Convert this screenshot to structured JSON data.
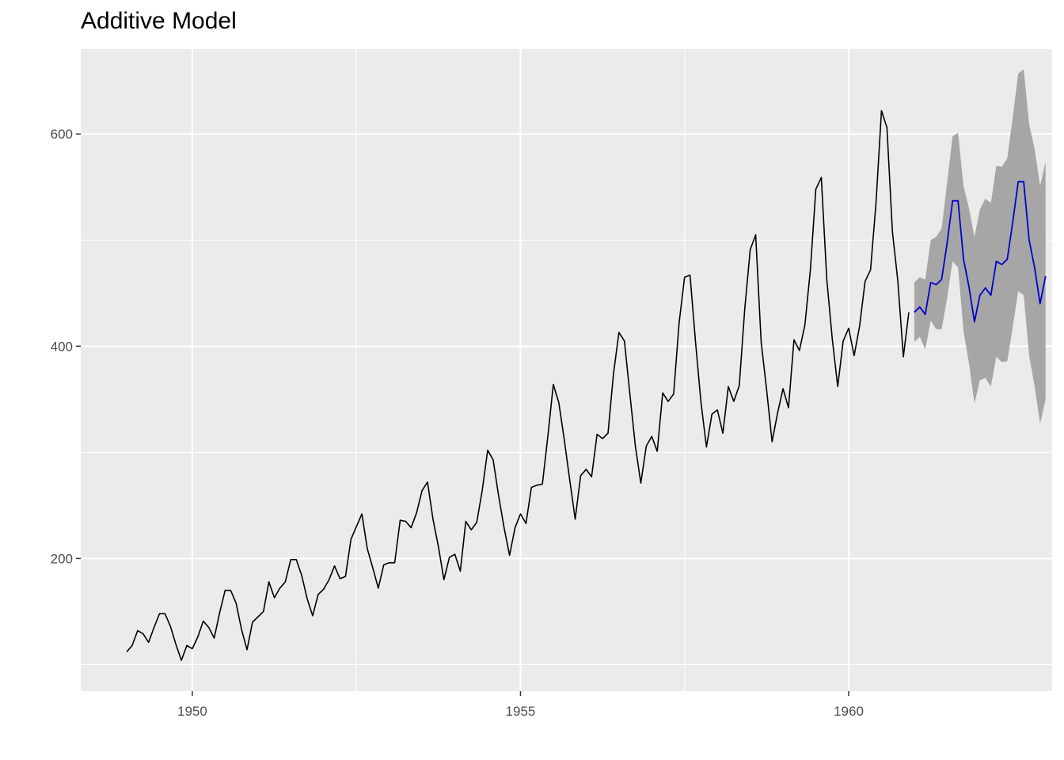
{
  "chart_data": {
    "type": "line",
    "title": "Additive Model",
    "xlabel": "",
    "ylabel": "",
    "xlim": [
      1948.3,
      1963.1
    ],
    "ylim": [
      75,
      680
    ],
    "x_ticks": [
      1950,
      1955,
      1960
    ],
    "x_tick_labels": [
      "1950",
      "1955",
      "1960"
    ],
    "y_ticks": [
      200,
      400,
      600
    ],
    "y_tick_labels": [
      "200",
      "400",
      "600"
    ],
    "y_minor_ticks": [
      100,
      300,
      500
    ],
    "x_minor_ticks": [
      1952.5,
      1957.5
    ],
    "grid": true,
    "legend": "none",
    "colors": {
      "panel_background": "#ebebeb",
      "grid": "#ffffff",
      "observed_line": "#000000",
      "forecast_line": "#0000cc",
      "interval_band": "#a6a6a6",
      "tick_text": "#4d4d4d"
    },
    "observed": {
      "start": 1949.0,
      "frequency": 12,
      "values": [
        112,
        118,
        132,
        129,
        121,
        135,
        148,
        148,
        136,
        119,
        104,
        118,
        115,
        126,
        141,
        135,
        125,
        149,
        170,
        170,
        158,
        133,
        114,
        140,
        145,
        150,
        178,
        163,
        172,
        178,
        199,
        199,
        184,
        162,
        146,
        166,
        171,
        180,
        193,
        181,
        183,
        218,
        230,
        242,
        209,
        191,
        172,
        194,
        196,
        196,
        236,
        235,
        229,
        243,
        264,
        272,
        237,
        211,
        180,
        201,
        204,
        188,
        235,
        227,
        234,
        264,
        302,
        293,
        259,
        229,
        203,
        229,
        242,
        233,
        267,
        269,
        270,
        315,
        364,
        347,
        312,
        274,
        237,
        278,
        284,
        277,
        317,
        313,
        318,
        374,
        413,
        405,
        355,
        306,
        271,
        306,
        315,
        301,
        356,
        348,
        355,
        422,
        465,
        467,
        404,
        347,
        305,
        336,
        340,
        318,
        362,
        348,
        363,
        435,
        491,
        505,
        404,
        359,
        310,
        337,
        360,
        342,
        406,
        396,
        420,
        472,
        548,
        559,
        463,
        407,
        362,
        405,
        417,
        391,
        419,
        461,
        472,
        535,
        622,
        606,
        508,
        461,
        390,
        432
      ]
    },
    "forecast": {
      "start": 1961.0,
      "frequency": 12,
      "values": [
        432,
        437,
        430,
        460,
        458,
        463,
        497,
        537,
        537,
        482,
        456,
        423,
        448,
        455,
        448,
        480,
        477,
        482,
        517,
        555,
        555,
        500,
        474,
        440,
        466
      ],
      "lower": [
        404,
        409,
        397,
        424,
        416,
        416,
        445,
        480,
        474,
        414,
        384,
        346,
        368,
        370,
        362,
        390,
        385,
        386,
        418,
        452,
        448,
        391,
        362,
        327,
        350
      ],
      "upper": [
        460,
        465,
        463,
        500,
        503,
        511,
        554,
        598,
        601,
        551,
        530,
        503,
        529,
        539,
        535,
        570,
        569,
        577,
        616,
        657,
        661,
        609,
        586,
        551,
        574
      ]
    }
  }
}
